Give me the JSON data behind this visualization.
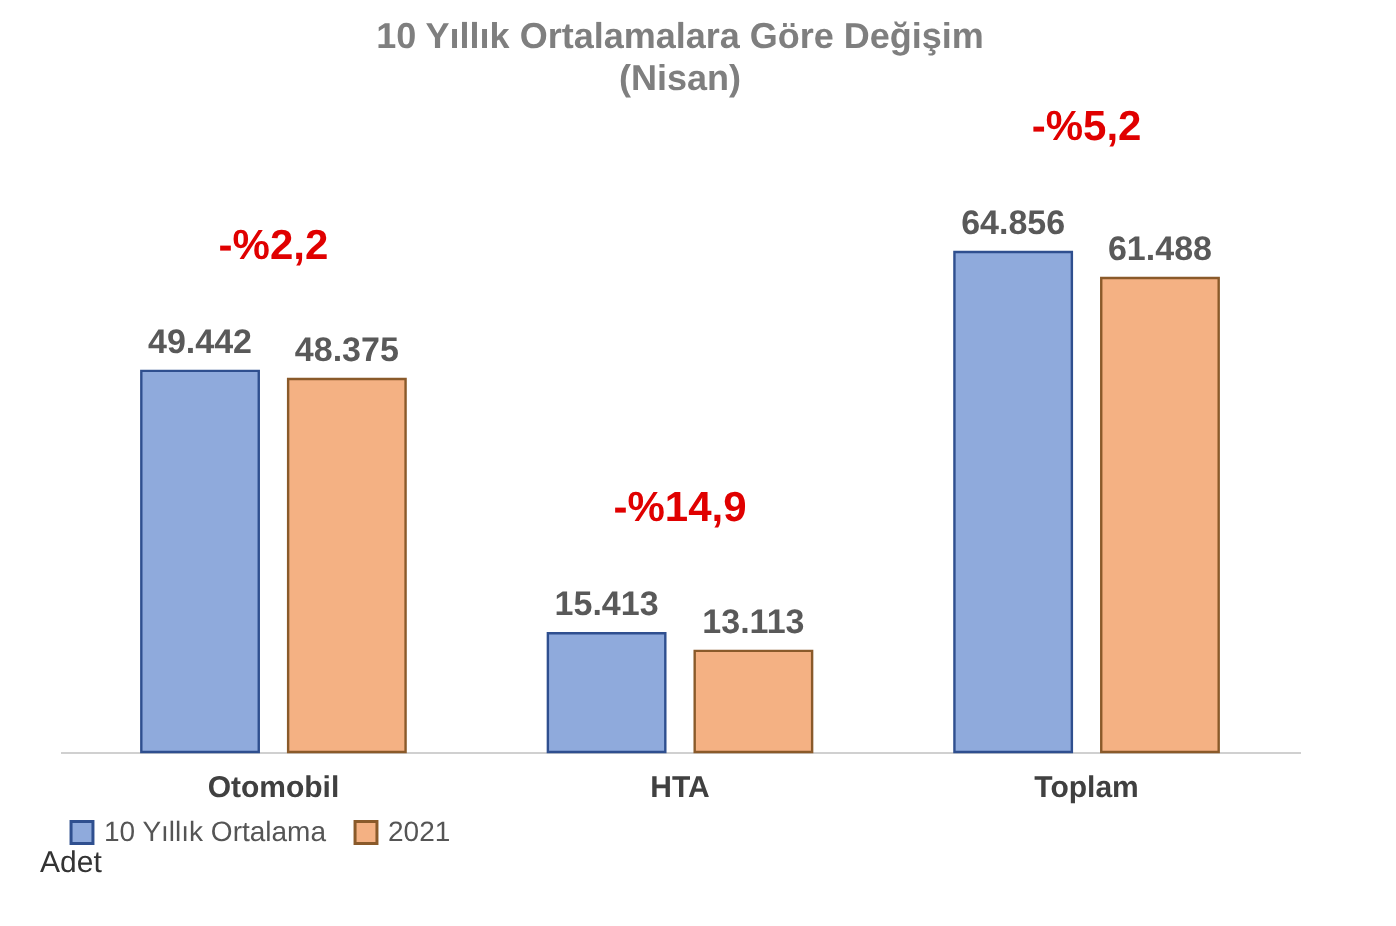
{
  "chart_data": {
    "type": "bar",
    "title": "10 Yıllık Ortalamalara  Göre Değişim",
    "subtitle": "(Nisan)",
    "categories": [
      "Otomobil",
      "HTA",
      "Toplam"
    ],
    "series": [
      {
        "name": "10 Yıllık Ortalama",
        "color": "#8faadc",
        "values": [
          49442,
          15413,
          64856
        ],
        "value_labels": [
          "49.442",
          "15.413",
          "64.856"
        ]
      },
      {
        "name": "2021",
        "color": "#f4b183",
        "values": [
          48375,
          13113,
          61488
        ],
        "value_labels": [
          "48.375",
          "13.113",
          "61.488"
        ]
      }
    ],
    "tick_labels": "x",
    "grid": false,
    "legend": "bottom",
    "annotations": [
      "-%2,2",
      "-%14,9",
      "-%5,2",
      "Adet"
    ]
  }
}
